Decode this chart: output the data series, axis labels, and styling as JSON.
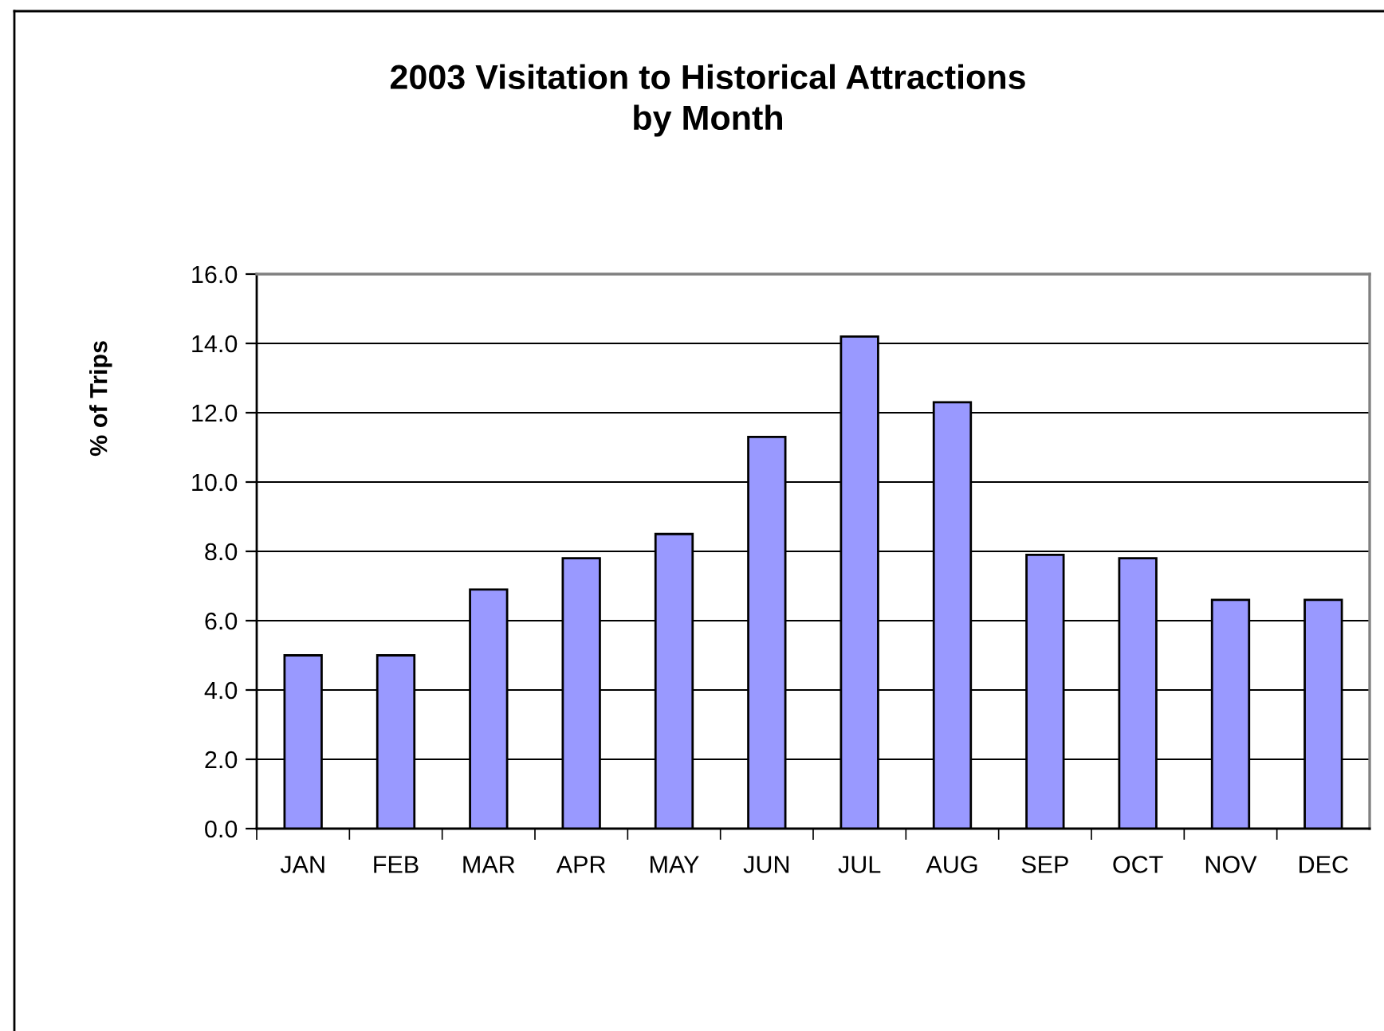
{
  "chart_data": {
    "type": "bar",
    "title": "2003 Visitation to Historical Attractions\nby Month",
    "ylabel": "% of Trips",
    "categories": [
      "JAN",
      "FEB",
      "MAR",
      "APR",
      "MAY",
      "JUN",
      "JUL",
      "AUG",
      "SEP",
      "OCT",
      "NOV",
      "DEC"
    ],
    "values": [
      5.0,
      5.0,
      6.9,
      7.8,
      8.5,
      11.3,
      14.2,
      12.3,
      7.9,
      7.8,
      6.6,
      6.6
    ],
    "color": "#9999ff",
    "ylim": [
      0,
      16
    ],
    "yticks": [
      {
        "value": 0,
        "label": "0.0"
      },
      {
        "value": 2,
        "label": "2.0"
      },
      {
        "value": 4,
        "label": "4.0"
      },
      {
        "value": 6,
        "label": "6.0"
      },
      {
        "value": 8,
        "label": "8.0"
      },
      {
        "value": 10,
        "label": "10.0"
      },
      {
        "value": 12,
        "label": "12.0"
      },
      {
        "value": 14,
        "label": "14.0"
      },
      {
        "value": 16,
        "label": "16.0"
      }
    ],
    "grid": "y",
    "legend": false
  }
}
